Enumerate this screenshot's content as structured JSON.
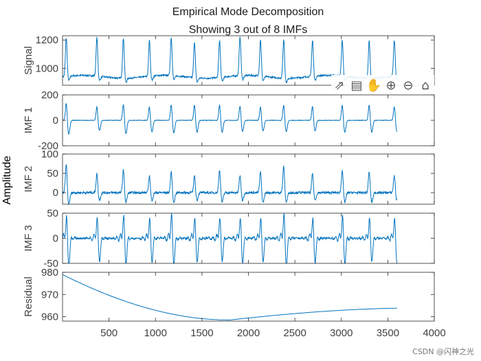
{
  "figure": {
    "title_line1": "Empirical Mode Decomposition",
    "title_line2": "Showing 3 out of 8 IMFs",
    "common_ylabel": "Amplitude",
    "watermark": "CSDN @闪神之光",
    "line_color": "#0072BD"
  },
  "toolbar": [
    {
      "name": "export-icon",
      "glyph": "⇗"
    },
    {
      "name": "data-tips-icon",
      "glyph": "▤"
    },
    {
      "name": "pan-icon",
      "glyph": "✋"
    },
    {
      "name": "zoom-in-icon",
      "glyph": "⊕"
    },
    {
      "name": "zoom-out-icon",
      "glyph": "⊖"
    },
    {
      "name": "home-icon",
      "glyph": "⌂"
    }
  ],
  "chart_data": [
    {
      "type": "line",
      "ylabel": "Signal",
      "xlim": [
        0,
        4000
      ],
      "ylim": [
        880,
        1230
      ],
      "yticks": [
        1000,
        1200
      ],
      "ytick_labels": [
        "1000",
        "1200"
      ],
      "baseline": 940,
      "drift": 20,
      "noise": 6,
      "beats": [
        {
          "x": 40,
          "h": 275,
          "d": -30
        },
        {
          "x": 370,
          "h": 275,
          "d": -30
        },
        {
          "x": 655,
          "h": 285,
          "d": -30
        },
        {
          "x": 935,
          "h": 255,
          "d": -30
        },
        {
          "x": 1170,
          "h": 270,
          "d": -30
        },
        {
          "x": 1420,
          "h": 255,
          "d": -30
        },
        {
          "x": 1690,
          "h": 265,
          "d": -30
        },
        {
          "x": 1910,
          "h": 275,
          "d": -30
        },
        {
          "x": 2130,
          "h": 260,
          "d": -30
        },
        {
          "x": 2380,
          "h": 275,
          "d": -30
        },
        {
          "x": 2690,
          "h": 255,
          "d": -30
        },
        {
          "x": 3010,
          "h": 255,
          "d": -30
        },
        {
          "x": 3300,
          "h": 265,
          "d": -30
        },
        {
          "x": 3570,
          "h": 255,
          "d": -30
        }
      ],
      "samples": 3600
    },
    {
      "type": "line",
      "ylabel": "IMF 1",
      "xlim": [
        0,
        4000
      ],
      "ylim": [
        -200,
        200
      ],
      "yticks": [
        -200,
        0,
        200
      ],
      "ytick_labels": [
        "-200",
        "0",
        "200"
      ],
      "baseline": 0,
      "drift": 0,
      "noise": 2,
      "beats": [
        {
          "x": 40,
          "h": 140,
          "d": -110
        },
        {
          "x": 370,
          "h": 110,
          "d": -80
        },
        {
          "x": 655,
          "h": 130,
          "d": -105
        },
        {
          "x": 935,
          "h": 110,
          "d": -90
        },
        {
          "x": 1170,
          "h": 125,
          "d": -100
        },
        {
          "x": 1420,
          "h": 125,
          "d": -95
        },
        {
          "x": 1690,
          "h": 125,
          "d": -95
        },
        {
          "x": 1910,
          "h": 115,
          "d": -90
        },
        {
          "x": 2130,
          "h": 110,
          "d": -85
        },
        {
          "x": 2380,
          "h": 125,
          "d": -90
        },
        {
          "x": 2690,
          "h": 115,
          "d": -85
        },
        {
          "x": 3010,
          "h": 125,
          "d": -95
        },
        {
          "x": 3300,
          "h": 125,
          "d": -95
        },
        {
          "x": 3570,
          "h": 110,
          "d": -85
        }
      ],
      "samples": 3600
    },
    {
      "type": "line",
      "ylabel": "IMF 2",
      "xlim": [
        0,
        4000
      ],
      "ylim": [
        -30,
        100
      ],
      "yticks": [
        0,
        50,
        100
      ],
      "ytick_labels": [
        "0",
        "50",
        "100"
      ],
      "baseline": 0,
      "drift": 0,
      "noise": 3,
      "beats": [
        {
          "x": 40,
          "h": 75,
          "d": -30
        },
        {
          "x": 370,
          "h": 50,
          "d": -20
        },
        {
          "x": 655,
          "h": 60,
          "d": -25
        },
        {
          "x": 935,
          "h": 45,
          "d": -20
        },
        {
          "x": 1170,
          "h": 55,
          "d": -25
        },
        {
          "x": 1420,
          "h": 45,
          "d": -20
        },
        {
          "x": 1690,
          "h": 60,
          "d": -25
        },
        {
          "x": 1910,
          "h": 45,
          "d": -20
        },
        {
          "x": 2130,
          "h": 55,
          "d": -25
        },
        {
          "x": 2380,
          "h": 70,
          "d": -25
        },
        {
          "x": 2690,
          "h": 50,
          "d": -20
        },
        {
          "x": 3010,
          "h": 60,
          "d": -25
        },
        {
          "x": 3300,
          "h": 55,
          "d": -25
        },
        {
          "x": 3570,
          "h": 45,
          "d": -20
        }
      ],
      "samples": 3600
    },
    {
      "type": "line",
      "ylabel": "IMF 3",
      "xlim": [
        0,
        4000
      ],
      "ylim": [
        -50,
        50
      ],
      "yticks": [
        -50,
        0,
        50
      ],
      "ytick_labels": [
        "-50",
        "0",
        "50"
      ],
      "baseline": 0,
      "drift": 0,
      "noise": 2,
      "beats": [
        {
          "x": 40,
          "h": 45,
          "d": -48
        },
        {
          "x": 370,
          "h": 40,
          "d": -40
        },
        {
          "x": 655,
          "h": 45,
          "d": -45
        },
        {
          "x": 935,
          "h": 40,
          "d": -40
        },
        {
          "x": 1170,
          "h": 48,
          "d": -45
        },
        {
          "x": 1420,
          "h": 40,
          "d": -40
        },
        {
          "x": 1690,
          "h": 40,
          "d": -40
        },
        {
          "x": 1910,
          "h": 40,
          "d": -42
        },
        {
          "x": 2130,
          "h": 40,
          "d": -40
        },
        {
          "x": 2380,
          "h": 48,
          "d": -48
        },
        {
          "x": 2690,
          "h": 40,
          "d": -42
        },
        {
          "x": 3010,
          "h": 45,
          "d": -45
        },
        {
          "x": 3300,
          "h": 40,
          "d": -40
        },
        {
          "x": 3570,
          "h": 40,
          "d": -42
        }
      ],
      "samples": 3600
    },
    {
      "type": "line",
      "ylabel": "Residual",
      "xlim": [
        0,
        4000
      ],
      "ylim": [
        958,
        980
      ],
      "yticks": [
        960,
        970,
        980
      ],
      "ytick_labels": [
        "960",
        "970",
        "980"
      ],
      "residual": {
        "start": 979,
        "min": 958.5,
        "min_x": 1800,
        "end": 963.8,
        "end_x": 3600
      },
      "xticks": [
        500,
        1000,
        1500,
        2000,
        2500,
        3000,
        3500,
        4000
      ],
      "xtick_labels": [
        "500",
        "1000",
        "1500",
        "2000",
        "2500",
        "3000",
        "3500",
        "4000"
      ]
    }
  ]
}
